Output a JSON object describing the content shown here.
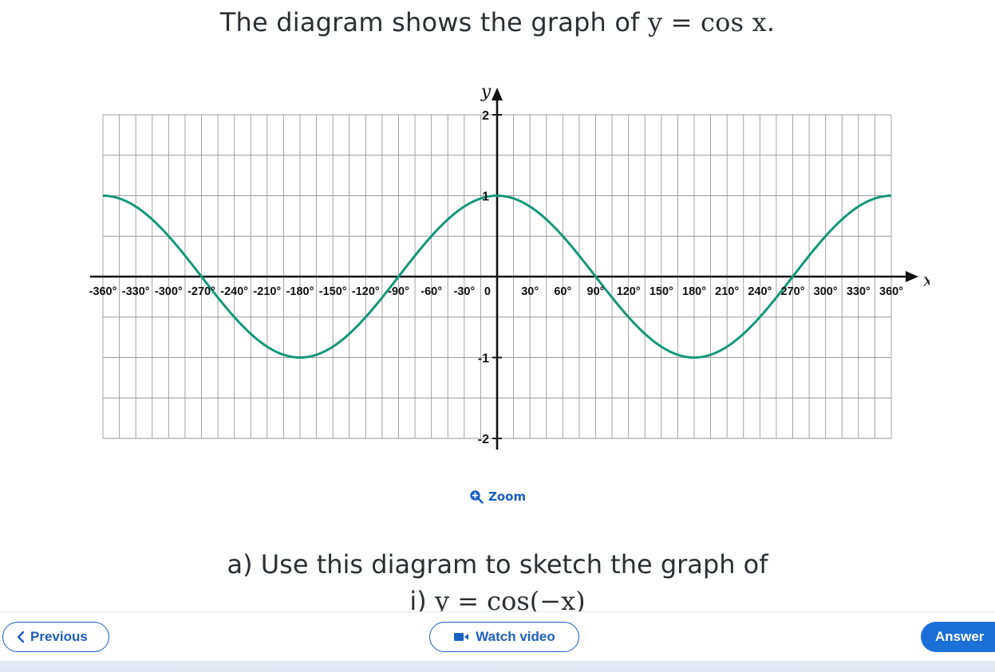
{
  "question": {
    "intro_text": "The diagram shows the graph of ",
    "intro_math": "y = cos x",
    "intro_end": "."
  },
  "zoom": {
    "label": "Zoom",
    "icon": "zoom-in-icon"
  },
  "part_a": {
    "text": "a) Use this diagram to sketch the graph of",
    "sub_i_prefix": "i) ",
    "sub_i_math": "y = cos(−x)"
  },
  "nav": {
    "previous_label": "Previous",
    "watch_video_label": "Watch video",
    "answer_label": "Answer",
    "previous_icon": "chevron-left-icon",
    "video_icon": "video-camera-icon"
  },
  "colors": {
    "curve": "#15967a",
    "accent": "#1b5fc1",
    "answer_bg": "#1b6fd6",
    "grid": "#9a9a9a"
  },
  "chart_data": {
    "type": "line",
    "title": "",
    "function": "y = cos x",
    "xlabel": "x",
    "ylabel": "y",
    "xlim": [
      -360,
      360
    ],
    "ylim": [
      -2,
      2
    ],
    "grid": true,
    "x_ticks": [
      -360,
      -330,
      -300,
      -270,
      -240,
      -210,
      -180,
      -150,
      -120,
      -90,
      -60,
      -30,
      0,
      30,
      60,
      90,
      120,
      150,
      180,
      210,
      240,
      270,
      300,
      330,
      360
    ],
    "x_tick_labels": [
      "-360°",
      "-330°",
      "-300°",
      "-270°",
      "-240°",
      "-210°",
      "-180°",
      "-150°",
      "-120°",
      "-90°",
      "-60°",
      "-30°",
      "0",
      "30°",
      "60°",
      "90°",
      "120°",
      "150°",
      "180°",
      "210°",
      "240°",
      "270°",
      "300°",
      "330°",
      "360°"
    ],
    "y_ticks": [
      -2,
      -1,
      1,
      2
    ],
    "y_tick_labels": [
      "-2",
      "-1",
      "1",
      "2"
    ],
    "series": [
      {
        "x": [
          -360,
          -330,
          -300,
          -270,
          -240,
          -210,
          -180,
          -150,
          -120,
          -90,
          -60,
          -30,
          0,
          30,
          60,
          90,
          120,
          150,
          180,
          210,
          240,
          270,
          300,
          330,
          360
        ],
        "values": [
          1,
          0.866,
          0.5,
          0,
          -0.5,
          -0.866,
          -1,
          -0.866,
          -0.5,
          0,
          0.5,
          0.866,
          1,
          0.866,
          0.5,
          0,
          -0.5,
          -0.866,
          -1,
          -0.866,
          -0.5,
          0,
          0.5,
          0.866,
          1
        ]
      }
    ]
  }
}
